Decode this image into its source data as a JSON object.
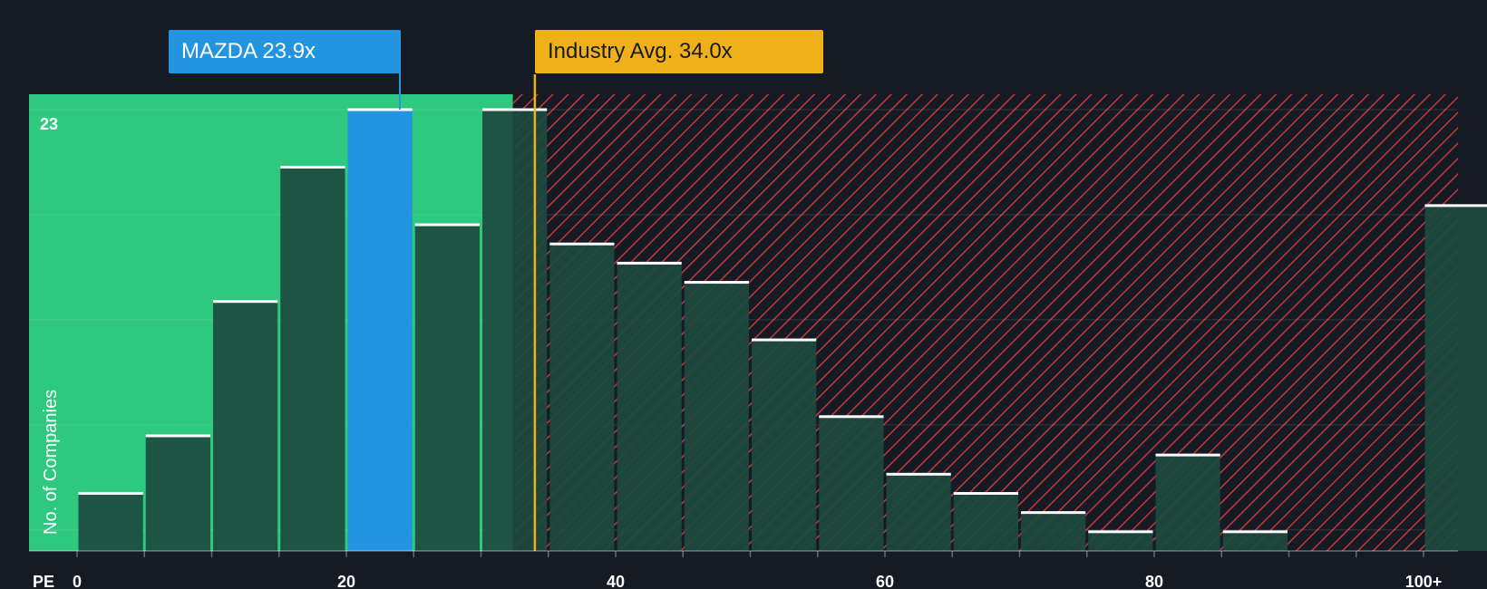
{
  "chart_data": {
    "type": "bar",
    "title": "",
    "xlabel": "PE",
    "ylabel": "No. of Companies",
    "x_ticks": [
      "0",
      "20",
      "40",
      "60",
      "80",
      "100+"
    ],
    "y_max_label": "23",
    "ylim": [
      0,
      23
    ],
    "bin_width": 5,
    "bins_start": [
      0,
      5,
      10,
      15,
      20,
      25,
      30,
      35,
      40,
      45,
      50,
      55,
      60,
      65,
      70,
      75,
      80,
      85,
      90,
      95,
      100
    ],
    "values": [
      3,
      6,
      13,
      20,
      23,
      17,
      23,
      16,
      15,
      14,
      11,
      7,
      4,
      3,
      2,
      1,
      5,
      1,
      0,
      0,
      18
    ],
    "highlight": {
      "label": "MAZDA 23.9x",
      "value": 23.9,
      "bin_start": 20,
      "color": "#2394e0"
    },
    "industry_avg": {
      "label": "Industry Avg. 34.0x",
      "value": 34.0,
      "color": "#efb11a"
    },
    "colors": {
      "background": "#151b24",
      "below_avg_zone": "#2ec97e",
      "above_avg_hatch": "#c8363c",
      "bar": "#1d4a3e",
      "bar_cap": "#ffffff"
    }
  }
}
